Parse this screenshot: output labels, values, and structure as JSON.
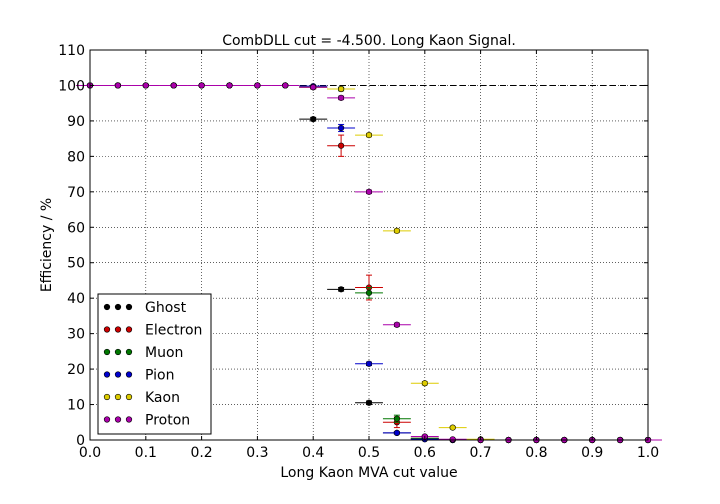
{
  "chart_data": {
    "type": "scatter",
    "title": "CombDLL cut = -4.500. Long Kaon Signal.",
    "xlabel": "Long Kaon MVA cut value",
    "ylabel": "Efficiency / %",
    "xlim": [
      0.0,
      1.0
    ],
    "ylim": [
      0,
      110
    ],
    "xticks": [
      "0.0",
      "0.1",
      "0.2",
      "0.3",
      "0.4",
      "0.5",
      "0.6",
      "0.7",
      "0.8",
      "0.9",
      "1.0"
    ],
    "yticks": [
      "0",
      "10",
      "20",
      "30",
      "40",
      "50",
      "60",
      "70",
      "80",
      "90",
      "100",
      "110"
    ],
    "grid": true,
    "reference_line": 100,
    "legend_position": "lower-left",
    "series": [
      {
        "name": "Ghost",
        "color": "#000000",
        "x": [
          0.0,
          0.05,
          0.1,
          0.15,
          0.2,
          0.25,
          0.3,
          0.35,
          0.4,
          0.45,
          0.5,
          0.55,
          0.6,
          0.65,
          0.7,
          0.75,
          0.8,
          0.85,
          0.9,
          0.95,
          1.0
        ],
        "y": [
          100,
          100,
          100,
          100,
          100,
          100,
          100,
          100,
          90.5,
          42.5,
          10.5,
          2.0,
          0.3,
          0.0,
          0.0,
          0.0,
          0.0,
          0.0,
          0.0,
          0.0,
          0.0
        ],
        "xerr": [
          0.025,
          0.025,
          0.025,
          0.025,
          0.025,
          0.025,
          0.025,
          0.025,
          0.025,
          0.025,
          0.025,
          0.025,
          0.025,
          0.025,
          0.025,
          0.025,
          0.025,
          0.025,
          0.025,
          0.025,
          0.025
        ],
        "yerr": [
          0,
          0,
          0,
          0,
          0,
          0,
          0,
          0,
          0.5,
          0.5,
          0.5,
          0.3,
          0.2,
          0,
          0,
          0,
          0,
          0,
          0,
          0,
          0
        ]
      },
      {
        "name": "Electron",
        "color": "#cc0000",
        "x": [
          0.0,
          0.05,
          0.1,
          0.15,
          0.2,
          0.25,
          0.3,
          0.35,
          0.4,
          0.45,
          0.5,
          0.55,
          0.6,
          0.65,
          0.7,
          0.75,
          0.8,
          0.85,
          0.9,
          0.95,
          1.0
        ],
        "y": [
          100,
          100,
          100,
          100,
          100,
          100,
          100,
          100,
          99.5,
          83.0,
          43.0,
          5.0,
          0.5,
          0.0,
          0.0,
          0.0,
          0.0,
          0.0,
          0.0,
          0.0,
          0.0
        ],
        "xerr": [
          0.025,
          0.025,
          0.025,
          0.025,
          0.025,
          0.025,
          0.025,
          0.025,
          0.025,
          0.025,
          0.025,
          0.025,
          0.025,
          0.025,
          0.025,
          0.025,
          0.025,
          0.025,
          0.025,
          0.025,
          0.025
        ],
        "yerr": [
          0,
          0,
          0,
          0,
          0,
          0,
          0,
          0,
          0.5,
          3.0,
          3.5,
          1.5,
          0.5,
          0,
          0,
          0,
          0,
          0,
          0,
          0,
          0
        ]
      },
      {
        "name": "Muon",
        "color": "#007700",
        "x": [
          0.0,
          0.05,
          0.1,
          0.15,
          0.2,
          0.25,
          0.3,
          0.35,
          0.4,
          0.45,
          0.5,
          0.55,
          0.6,
          0.65,
          0.7,
          0.75,
          0.8,
          0.85,
          0.9,
          0.95,
          1.0
        ],
        "y": [
          100,
          100,
          100,
          100,
          100,
          100,
          100,
          100,
          99.5,
          99.0,
          41.5,
          6.0,
          0.5,
          0.0,
          0.0,
          0.0,
          0.0,
          0.0,
          0.0,
          0.0,
          0.0
        ],
        "xerr": [
          0.025,
          0.025,
          0.025,
          0.025,
          0.025,
          0.025,
          0.025,
          0.025,
          0.025,
          0.025,
          0.025,
          0.025,
          0.025,
          0.025,
          0.025,
          0.025,
          0.025,
          0.025,
          0.025,
          0.025,
          0.025
        ],
        "yerr": [
          0,
          0,
          0,
          0,
          0,
          0,
          0,
          0,
          0.3,
          0.5,
          1.5,
          1.0,
          0.3,
          0,
          0,
          0,
          0,
          0,
          0,
          0,
          0
        ]
      },
      {
        "name": "Pion",
        "color": "#0000cc",
        "x": [
          0.0,
          0.05,
          0.1,
          0.15,
          0.2,
          0.25,
          0.3,
          0.35,
          0.4,
          0.45,
          0.5,
          0.55,
          0.6,
          0.65,
          0.7,
          0.75,
          0.8,
          0.85,
          0.9,
          0.95,
          1.0
        ],
        "y": [
          100,
          100,
          100,
          100,
          100,
          100,
          100,
          100,
          99.8,
          88.0,
          21.5,
          2.0,
          0.2,
          0.0,
          0.0,
          0.0,
          0.0,
          0.0,
          0.0,
          0.0,
          0.0
        ],
        "xerr": [
          0.025,
          0.025,
          0.025,
          0.025,
          0.025,
          0.025,
          0.025,
          0.025,
          0.025,
          0.025,
          0.025,
          0.025,
          0.025,
          0.025,
          0.025,
          0.025,
          0.025,
          0.025,
          0.025,
          0.025,
          0.025
        ],
        "yerr": [
          0,
          0,
          0,
          0,
          0,
          0,
          0,
          0,
          0.2,
          1.0,
          0.5,
          0.3,
          0.1,
          0,
          0,
          0,
          0,
          0,
          0,
          0,
          0
        ]
      },
      {
        "name": "Kaon",
        "color": "#ddcc00",
        "x": [
          0.0,
          0.05,
          0.1,
          0.15,
          0.2,
          0.25,
          0.3,
          0.35,
          0.4,
          0.45,
          0.5,
          0.55,
          0.6,
          0.65,
          0.7,
          0.75,
          0.8,
          0.85,
          0.9,
          0.95,
          1.0
        ],
        "y": [
          100,
          100,
          100,
          100,
          100,
          100,
          100,
          100,
          99.5,
          99.0,
          86.0,
          59.0,
          16.0,
          3.5,
          0.2,
          0.0,
          0.0,
          0.0,
          0.0,
          0.0,
          0.0
        ],
        "xerr": [
          0.025,
          0.025,
          0.025,
          0.025,
          0.025,
          0.025,
          0.025,
          0.025,
          0.025,
          0.025,
          0.025,
          0.025,
          0.025,
          0.025,
          0.025,
          0.025,
          0.025,
          0.025,
          0.025,
          0.025,
          0.025
        ],
        "yerr": [
          0,
          0,
          0,
          0,
          0,
          0,
          0,
          0,
          0.2,
          0.3,
          0.5,
          0.5,
          0.5,
          0.3,
          0.1,
          0,
          0,
          0,
          0,
          0,
          0
        ]
      },
      {
        "name": "Proton",
        "color": "#aa00aa",
        "x": [
          0.0,
          0.05,
          0.1,
          0.15,
          0.2,
          0.25,
          0.3,
          0.35,
          0.4,
          0.45,
          0.5,
          0.55,
          0.6,
          0.65,
          0.7,
          0.75,
          0.8,
          0.85,
          0.9,
          0.95,
          1.0
        ],
        "y": [
          100,
          100,
          100,
          100,
          100,
          100,
          100,
          100,
          99.5,
          96.5,
          70.0,
          32.5,
          1.0,
          0.2,
          0.0,
          0.0,
          0.0,
          0.0,
          0.0,
          0.0,
          0.0
        ],
        "xerr": [
          0.025,
          0.025,
          0.025,
          0.025,
          0.025,
          0.025,
          0.025,
          0.025,
          0.025,
          0.025,
          0.025,
          0.025,
          0.025,
          0.025,
          0.025,
          0.025,
          0.025,
          0.025,
          0.025,
          0.025,
          0.025
        ],
        "yerr": [
          0,
          0,
          0,
          0,
          0,
          0,
          0,
          0,
          0.3,
          0.5,
          0.5,
          0.5,
          0.3,
          0.1,
          0,
          0,
          0,
          0,
          0,
          0,
          0
        ]
      }
    ]
  }
}
